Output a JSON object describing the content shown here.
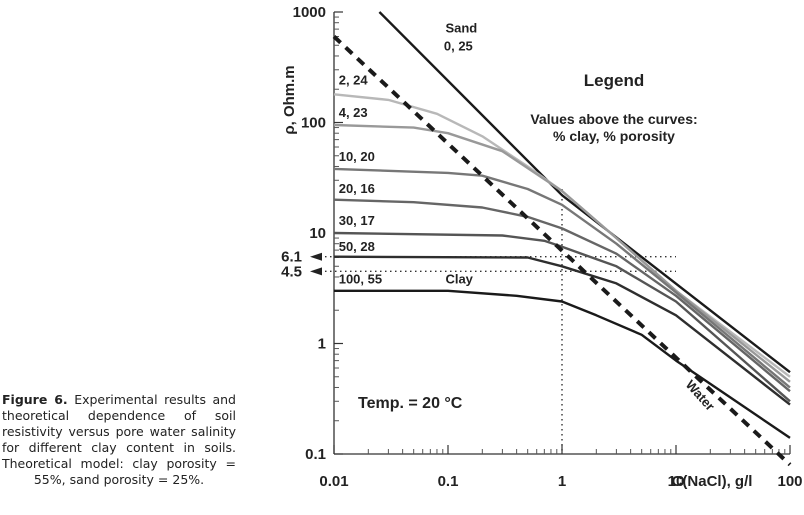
{
  "caption": {
    "label": "Figure 6.",
    "text": "Experimental results and theoretical dependence of soil resistivity versus pore water salinity for different clay content in soils. Theoretical model: clay porosity = 55%, sand porosity = 25%."
  },
  "chart_data": {
    "type": "line",
    "title": "",
    "xlabel": "C(NaCl), g/l",
    "ylabel": "ρ, Ohm.m",
    "xscale": "log",
    "yscale": "log",
    "xlim": [
      0.01,
      100
    ],
    "ylim": [
      0.1,
      1000
    ],
    "x_ticks": [
      "0.01",
      "0.1",
      "1",
      "10",
      "100"
    ],
    "y_ticks": [
      "0.1",
      "1",
      "10",
      "100",
      "1000"
    ],
    "legend": {
      "title": "Legend",
      "subtitle_line1": "Values above the curves:",
      "subtitle_line2": "% clay, % porosity"
    },
    "temperature_label": "Temp. = 20 °C",
    "reference_lines": [
      {
        "label": "6.1",
        "y": 6.1,
        "x_end": 10
      },
      {
        "label": "4.5",
        "y": 4.5,
        "x_end": 10
      }
    ],
    "vertical_reference": {
      "x": 1
    },
    "series": [
      {
        "name": "Sand 0, 25",
        "label_top": "Sand",
        "label_bottom": "0, 25",
        "color": "#1a1a1a",
        "points": [
          [
            0.025,
            1000
          ],
          [
            1,
            22
          ],
          [
            100,
            0.55
          ]
        ]
      },
      {
        "name": "2, 24",
        "color": "#b8b8b8",
        "points": [
          [
            0.01,
            180
          ],
          [
            0.03,
            160
          ],
          [
            0.08,
            120
          ],
          [
            0.2,
            75
          ],
          [
            0.5,
            40
          ],
          [
            1,
            24
          ],
          [
            3,
            9
          ],
          [
            10,
            3
          ],
          [
            100,
            0.5
          ]
        ]
      },
      {
        "name": "4, 23",
        "color": "#999999",
        "points": [
          [
            0.01,
            95
          ],
          [
            0.05,
            90
          ],
          [
            0.1,
            80
          ],
          [
            0.3,
            55
          ],
          [
            1,
            24
          ],
          [
            3,
            9
          ],
          [
            10,
            3
          ],
          [
            100,
            0.45
          ]
        ]
      },
      {
        "name": "10, 20",
        "color": "#777777",
        "points": [
          [
            0.01,
            38
          ],
          [
            0.1,
            35
          ],
          [
            0.2,
            33
          ],
          [
            0.5,
            25
          ],
          [
            1,
            18
          ],
          [
            3,
            8
          ],
          [
            10,
            2.9
          ],
          [
            100,
            0.4
          ]
        ]
      },
      {
        "name": "20, 16",
        "color": "#666666",
        "points": [
          [
            0.01,
            20
          ],
          [
            0.05,
            19
          ],
          [
            0.2,
            17
          ],
          [
            0.5,
            14
          ],
          [
            1,
            11
          ],
          [
            3,
            6.5
          ],
          [
            10,
            2.7
          ],
          [
            100,
            0.37
          ]
        ]
      },
      {
        "name": "30, 17",
        "color": "#555555",
        "points": [
          [
            0.01,
            10
          ],
          [
            0.3,
            9.5
          ],
          [
            0.7,
            8.5
          ],
          [
            1,
            7.5
          ],
          [
            3,
            5
          ],
          [
            10,
            2.4
          ],
          [
            100,
            0.3
          ]
        ]
      },
      {
        "name": "50, 28",
        "color": "#2e2e2e",
        "points": [
          [
            0.01,
            6.1
          ],
          [
            0.5,
            6
          ],
          [
            1,
            5
          ],
          [
            3,
            3.5
          ],
          [
            10,
            1.8
          ],
          [
            100,
            0.28
          ]
        ]
      },
      {
        "name": "100, 55",
        "label_right": "Clay",
        "color": "#1a1a1a",
        "points": [
          [
            0.01,
            3
          ],
          [
            0.1,
            3
          ],
          [
            0.4,
            2.7
          ],
          [
            1,
            2.4
          ],
          [
            2,
            1.8
          ],
          [
            5,
            1.2
          ],
          [
            10,
            0.7
          ],
          [
            100,
            0.14
          ]
        ]
      },
      {
        "name": "Water",
        "color": "#1a1a1a",
        "dashed": true,
        "points": [
          [
            0.01,
            600
          ],
          [
            100,
            0.08
          ]
        ]
      }
    ]
  }
}
